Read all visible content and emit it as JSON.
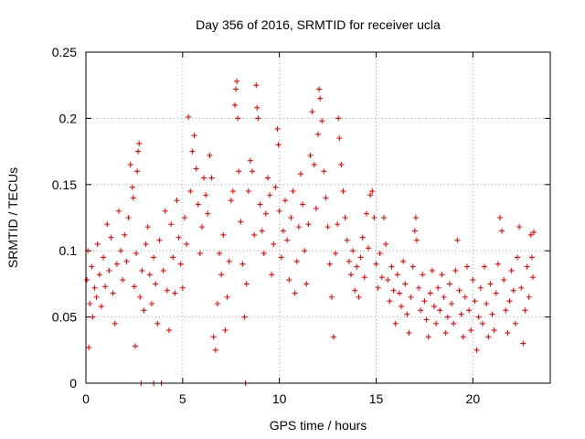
{
  "chart_data": {
    "type": "scatter",
    "title": "Day 356 of 2016, SRMTID for receiver ucla",
    "xlabel": "GPS time / hours",
    "ylabel": "SRMTID / TECUs",
    "xlim": [
      0,
      24
    ],
    "ylim": [
      0,
      0.25
    ],
    "x_ticks": [
      0,
      5,
      10,
      15,
      20
    ],
    "y_ticks": [
      0,
      0.05,
      0.1,
      0.15,
      0.2,
      0.25
    ],
    "x_tick_labels": [
      "0",
      "5",
      "10",
      "15",
      "20"
    ],
    "y_tick_labels": [
      "0",
      "0.05",
      "0.1",
      "0.15",
      "0.2",
      "0.25"
    ],
    "grid": true,
    "marker": "+",
    "color": "#ff0000",
    "series": [
      {
        "name": "SRMTID",
        "points": [
          [
            0.05,
            0.078
          ],
          [
            0.1,
            0.1
          ],
          [
            0.15,
            0.027
          ],
          [
            0.2,
            0.06
          ],
          [
            0.3,
            0.088
          ],
          [
            0.35,
            0.05
          ],
          [
            0.45,
            0.072
          ],
          [
            0.55,
            0.065
          ],
          [
            0.6,
            0.105
          ],
          [
            0.7,
            0.082
          ],
          [
            0.8,
            0.058
          ],
          [
            0.9,
            0.095
          ],
          [
            1.0,
            0.073
          ],
          [
            1.1,
            0.12
          ],
          [
            1.2,
            0.085
          ],
          [
            1.3,
            0.11
          ],
          [
            1.4,
            0.068
          ],
          [
            1.5,
            0.045
          ],
          [
            1.6,
            0.09
          ],
          [
            1.7,
            0.13
          ],
          [
            1.8,
            0.1
          ],
          [
            1.9,
            0.078
          ],
          [
            2.0,
            0.112
          ],
          [
            2.1,
            0.092
          ],
          [
            2.2,
            0.125
          ],
          [
            2.3,
            0.165
          ],
          [
            2.4,
            0.148
          ],
          [
            2.45,
            0.14
          ],
          [
            2.5,
            0.073
          ],
          [
            2.55,
            0.028
          ],
          [
            2.6,
            0.098
          ],
          [
            2.65,
            0.16
          ],
          [
            2.7,
            0.175
          ],
          [
            2.75,
            0.181
          ],
          [
            2.8,
            0.065
          ],
          [
            2.85,
            0.0
          ],
          [
            2.9,
            0.085
          ],
          [
            3.0,
            0.055
          ],
          [
            3.1,
            0.105
          ],
          [
            3.2,
            0.118
          ],
          [
            3.3,
            0.082
          ],
          [
            3.4,
            0.06
          ],
          [
            3.5,
            0.095
          ],
          [
            3.5,
            0.0
          ],
          [
            3.6,
            0.075
          ],
          [
            3.7,
            0.045
          ],
          [
            3.8,
            0.108
          ],
          [
            3.9,
            0.0
          ],
          [
            4.0,
            0.085
          ],
          [
            4.1,
            0.13
          ],
          [
            4.2,
            0.07
          ],
          [
            4.3,
            0.04
          ],
          [
            4.4,
            0.12
          ],
          [
            4.5,
            0.095
          ],
          [
            4.6,
            0.068
          ],
          [
            4.7,
            0.138
          ],
          [
            4.8,
            0.11
          ],
          [
            4.9,
            0.09
          ],
          [
            5.0,
            0.072
          ],
          [
            5.1,
            0.125
          ],
          [
            5.2,
            0.105
          ],
          [
            5.3,
            0.201
          ],
          [
            5.4,
            0.145
          ],
          [
            5.5,
            0.175
          ],
          [
            5.6,
            0.187
          ],
          [
            5.7,
            0.162
          ],
          [
            5.8,
            0.135
          ],
          [
            5.9,
            0.098
          ],
          [
            6.0,
            0.118
          ],
          [
            6.1,
            0.155
          ],
          [
            6.2,
            0.142
          ],
          [
            6.3,
            0.128
          ],
          [
            6.4,
            0.172
          ],
          [
            6.5,
            0.155
          ],
          [
            6.6,
            0.035
          ],
          [
            6.7,
            0.025
          ],
          [
            6.8,
            0.06
          ],
          [
            6.9,
            0.098
          ],
          [
            7.0,
            0.082
          ],
          [
            7.1,
            0.112
          ],
          [
            7.2,
            0.04
          ],
          [
            7.3,
            0.065
          ],
          [
            7.4,
            0.092
          ],
          [
            7.5,
            0.138
          ],
          [
            7.6,
            0.145
          ],
          [
            7.7,
            0.21
          ],
          [
            7.75,
            0.222
          ],
          [
            7.8,
            0.228
          ],
          [
            7.85,
            0.2
          ],
          [
            7.9,
            0.16
          ],
          [
            8.0,
            0.122
          ],
          [
            8.1,
            0.09
          ],
          [
            8.2,
            0.05
          ],
          [
            8.25,
            0.0
          ],
          [
            8.3,
            0.075
          ],
          [
            8.4,
            0.145
          ],
          [
            8.5,
            0.168
          ],
          [
            8.6,
            0.16
          ],
          [
            8.7,
            0.112
          ],
          [
            8.8,
            0.225
          ],
          [
            8.85,
            0.208
          ],
          [
            8.9,
            0.2
          ],
          [
            9.0,
            0.135
          ],
          [
            9.1,
            0.115
          ],
          [
            9.2,
            0.098
          ],
          [
            9.3,
            0.128
          ],
          [
            9.4,
            0.155
          ],
          [
            9.5,
            0.142
          ],
          [
            9.6,
            0.082
          ],
          [
            9.7,
            0.105
          ],
          [
            9.8,
            0.148
          ],
          [
            9.9,
            0.192
          ],
          [
            9.95,
            0.18
          ],
          [
            10.0,
            0.13
          ],
          [
            10.1,
            0.095
          ],
          [
            10.2,
            0.115
          ],
          [
            10.3,
            0.138
          ],
          [
            10.4,
            0.108
          ],
          [
            10.5,
            0.078
          ],
          [
            10.6,
            0.125
          ],
          [
            10.7,
            0.145
          ],
          [
            10.8,
            0.068
          ],
          [
            10.9,
            0.092
          ],
          [
            11.0,
            0.118
          ],
          [
            11.1,
            0.158
          ],
          [
            11.2,
            0.135
          ],
          [
            11.3,
            0.1
          ],
          [
            11.4,
            0.075
          ],
          [
            11.5,
            0.12
          ],
          [
            11.6,
            0.172
          ],
          [
            11.7,
            0.205
          ],
          [
            11.8,
            0.165
          ],
          [
            11.9,
            0.132
          ],
          [
            12.0,
            0.188
          ],
          [
            12.05,
            0.222
          ],
          [
            12.1,
            0.215
          ],
          [
            12.2,
            0.198
          ],
          [
            12.3,
            0.16
          ],
          [
            12.4,
            0.14
          ],
          [
            12.5,
            0.118
          ],
          [
            12.6,
            0.09
          ],
          [
            12.7,
            0.065
          ],
          [
            12.8,
            0.035
          ],
          [
            12.9,
            0.098
          ],
          [
            13.0,
            0.12
          ],
          [
            13.05,
            0.2
          ],
          [
            13.1,
            0.185
          ],
          [
            13.2,
            0.165
          ],
          [
            13.3,
            0.145
          ],
          [
            13.4,
            0.125
          ],
          [
            13.5,
            0.108
          ],
          [
            13.6,
            0.092
          ],
          [
            13.7,
            0.082
          ],
          [
            13.8,
            0.1
          ],
          [
            13.9,
            0.07
          ],
          [
            14.0,
            0.088
          ],
          [
            14.1,
            0.065
          ],
          [
            14.2,
            0.095
          ],
          [
            14.3,
            0.11
          ],
          [
            14.4,
            0.08
          ],
          [
            14.5,
            0.128
          ],
          [
            14.6,
            0.102
          ],
          [
            14.7,
            0.142
          ],
          [
            14.8,
            0.145
          ],
          [
            14.9,
            0.125
          ],
          [
            15.0,
            0.09
          ],
          [
            15.1,
            0.072
          ],
          [
            15.2,
            0.098
          ],
          [
            15.3,
            0.08
          ],
          [
            15.4,
            0.125
          ],
          [
            15.5,
            0.105
          ],
          [
            15.6,
            0.078
          ],
          [
            15.7,
            0.062
          ],
          [
            15.8,
            0.088
          ],
          [
            15.9,
            0.07
          ],
          [
            16.0,
            0.045
          ],
          [
            16.1,
            0.082
          ],
          [
            16.2,
            0.068
          ],
          [
            16.3,
            0.058
          ],
          [
            16.4,
            0.092
          ],
          [
            16.5,
            0.075
          ],
          [
            16.6,
            0.052
          ],
          [
            16.7,
            0.038
          ],
          [
            16.8,
            0.065
          ],
          [
            16.9,
            0.088
          ],
          [
            17.0,
            0.115
          ],
          [
            17.05,
            0.125
          ],
          [
            17.1,
            0.108
          ],
          [
            17.2,
            0.072
          ],
          [
            17.3,
            0.055
          ],
          [
            17.4,
            0.082
          ],
          [
            17.5,
            0.062
          ],
          [
            17.6,
            0.048
          ],
          [
            17.7,
            0.035
          ],
          [
            17.8,
            0.068
          ],
          [
            17.9,
            0.085
          ],
          [
            18.0,
            0.058
          ],
          [
            18.1,
            0.045
          ],
          [
            18.2,
            0.072
          ],
          [
            18.3,
            0.055
          ],
          [
            18.4,
            0.082
          ],
          [
            18.5,
            0.065
          ],
          [
            18.6,
            0.038
          ],
          [
            18.7,
            0.05
          ],
          [
            18.8,
            0.075
          ],
          [
            18.9,
            0.06
          ],
          [
            19.0,
            0.045
          ],
          [
            19.1,
            0.085
          ],
          [
            19.2,
            0.108
          ],
          [
            19.3,
            0.07
          ],
          [
            19.4,
            0.052
          ],
          [
            19.5,
            0.035
          ],
          [
            19.6,
            0.065
          ],
          [
            19.7,
            0.088
          ],
          [
            19.8,
            0.055
          ],
          [
            19.9,
            0.04
          ],
          [
            20.0,
            0.078
          ],
          [
            20.1,
            0.062
          ],
          [
            20.2,
            0.025
          ],
          [
            20.3,
            0.05
          ],
          [
            20.4,
            0.072
          ],
          [
            20.5,
            0.045
          ],
          [
            20.6,
            0.088
          ],
          [
            20.7,
            0.06
          ],
          [
            20.8,
            0.035
          ],
          [
            20.9,
            0.075
          ],
          [
            21.0,
            0.052
          ],
          [
            21.1,
            0.04
          ],
          [
            21.2,
            0.068
          ],
          [
            21.3,
            0.09
          ],
          [
            21.4,
            0.125
          ],
          [
            21.5,
            0.115
          ],
          [
            21.6,
            0.078
          ],
          [
            21.7,
            0.055
          ],
          [
            21.8,
            0.038
          ],
          [
            21.9,
            0.062
          ],
          [
            22.0,
            0.085
          ],
          [
            22.1,
            0.07
          ],
          [
            22.2,
            0.045
          ],
          [
            22.3,
            0.095
          ],
          [
            22.4,
            0.118
          ],
          [
            22.5,
            0.072
          ],
          [
            22.6,
            0.03
          ],
          [
            22.7,
            0.055
          ],
          [
            22.8,
            0.088
          ],
          [
            22.9,
            0.065
          ],
          [
            23.0,
            0.112
          ],
          [
            23.05,
            0.095
          ],
          [
            23.1,
            0.08
          ],
          [
            23.15,
            0.114
          ]
        ]
      }
    ]
  }
}
